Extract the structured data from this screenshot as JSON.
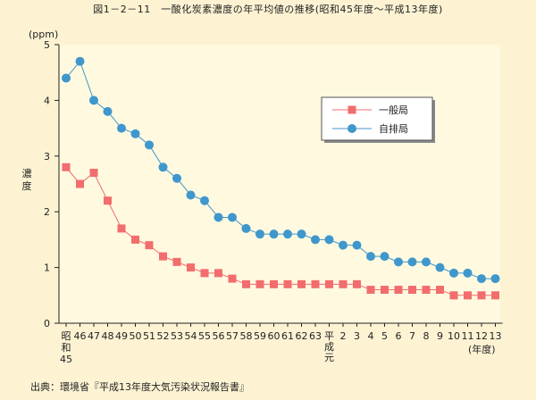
{
  "figure_title": "図1－2－11　一酸化炭素濃度の年平均値の推移(昭和45年度～平成13年度)",
  "source_note": "出典：環境省『平成13年度大気汚染状況報告書』",
  "chart_data": {
    "type": "line",
    "y_unit": "(ppm)",
    "ylabel": "濃度",
    "x_unit": "(年度)",
    "ylim": [
      0,
      5
    ],
    "y_ticks": [
      "0",
      "1",
      "2",
      "3",
      "4",
      "5"
    ],
    "grid": false,
    "legend_position": "top-right",
    "categories": [
      "昭和45",
      "46",
      "47",
      "48",
      "49",
      "50",
      "51",
      "52",
      "53",
      "54",
      "55",
      "56",
      "57",
      "58",
      "59",
      "60",
      "61",
      "62",
      "63",
      "平成元",
      "2",
      "3",
      "4",
      "5",
      "6",
      "7",
      "8",
      "9",
      "10",
      "11",
      "12",
      "13"
    ],
    "series": [
      {
        "name": "一般局",
        "color": "#f26d6d",
        "marker": "square",
        "values": [
          2.8,
          2.5,
          2.7,
          2.2,
          1.7,
          1.5,
          1.4,
          1.2,
          1.1,
          1.0,
          0.9,
          0.9,
          0.8,
          0.7,
          0.7,
          0.7,
          0.7,
          0.7,
          0.7,
          0.7,
          0.7,
          0.7,
          0.6,
          0.6,
          0.6,
          0.6,
          0.6,
          0.6,
          0.5,
          0.5,
          0.5,
          0.5
        ]
      },
      {
        "name": "自排局",
        "color": "#3f97cc",
        "marker": "circle",
        "values": [
          4.4,
          4.7,
          4.0,
          3.8,
          3.5,
          3.4,
          3.2,
          2.8,
          2.6,
          2.3,
          2.2,
          1.9,
          1.9,
          1.7,
          1.6,
          1.6,
          1.6,
          1.6,
          1.5,
          1.5,
          1.4,
          1.4,
          1.2,
          1.2,
          1.1,
          1.1,
          1.1,
          1.0,
          0.9,
          0.9,
          0.8,
          0.8
        ]
      }
    ]
  }
}
